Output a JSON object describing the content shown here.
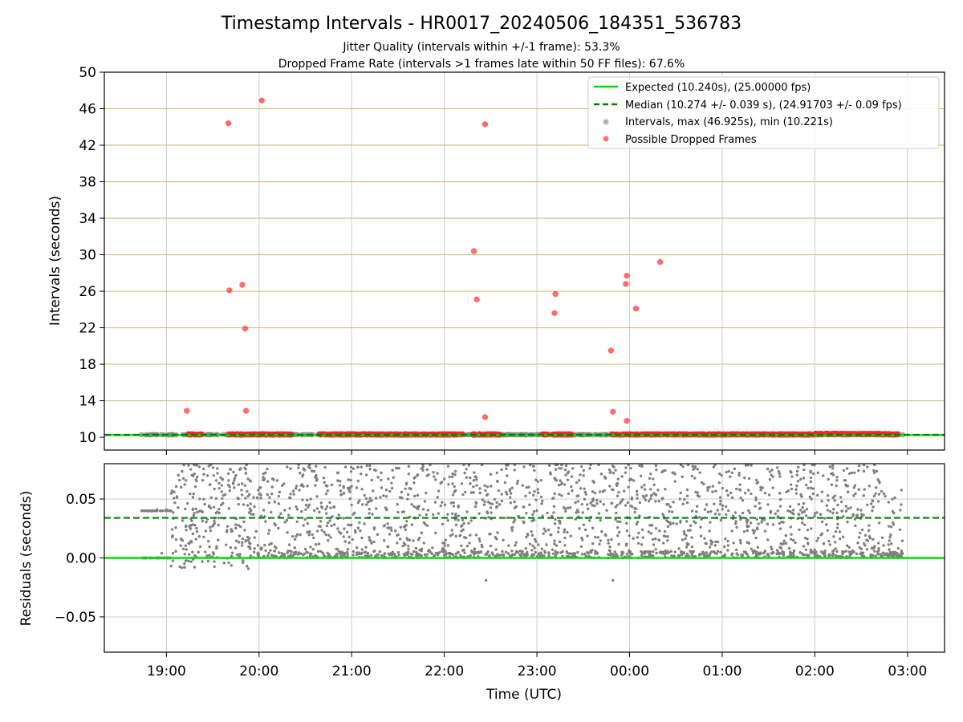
{
  "chart_data": {
    "type": "scatter",
    "title": "Timestamp Intervals - HR0017_20240506_184351_536783",
    "subtitles": [
      "Jitter Quality (intervals within +/-1 frame): 53.3%",
      "Dropped Frame Rate (intervals >1 frames late within 50 FF files): 67.6%"
    ],
    "xlabel": "Time (UTC)",
    "x_ticks": [
      "19:00",
      "20:00",
      "21:00",
      "22:00",
      "23:00",
      "00:00",
      "01:00",
      "02:00",
      "03:00"
    ],
    "xlim_hours": [
      18.33,
      27.4
    ],
    "x_unit": "hours of UTC time starting 2024-05-06",
    "grid": true,
    "legend_position": "top-right",
    "panels": [
      {
        "name": "intervals",
        "ylabel": "Intervals (seconds)",
        "ylim": [
          8.6,
          50
        ],
        "y_ticks": [
          "10",
          "14",
          "18",
          "22",
          "26",
          "30",
          "34",
          "38",
          "42",
          "46",
          "50"
        ],
        "expected_line": 10.24,
        "median_line": 10.274,
        "series": [
          {
            "name": "Expected (10.240s), (25.00000 fps)",
            "style": "solid-line",
            "color": "#00e000"
          },
          {
            "name": "Median (10.274 +/- 0.039 s), (24.91703 +/- 0.09 fps)",
            "style": "dashed-line",
            "color": "#008000"
          },
          {
            "name": "Intervals, max (46.925s), min (10.221s)",
            "style": "point",
            "color": "#808080",
            "x_range": [
              18.73,
              26.95
            ],
            "y_typical": [
              10.24,
              10.32
            ]
          },
          {
            "name": "Possible Dropped Frames",
            "style": "point",
            "color": "#ff3333",
            "points": [
              [
                19.22,
                12.9
              ],
              [
                19.67,
                44.4
              ],
              [
                19.68,
                26.1
              ],
              [
                19.82,
                26.7
              ],
              [
                19.85,
                21.9
              ],
              [
                19.86,
                12.9
              ],
              [
                20.03,
                46.9
              ],
              [
                22.32,
                30.4
              ],
              [
                22.35,
                25.1
              ],
              [
                22.44,
                44.3
              ],
              [
                22.44,
                12.2
              ],
              [
                23.19,
                23.6
              ],
              [
                23.2,
                25.7
              ],
              [
                23.8,
                19.5
              ],
              [
                23.82,
                12.8
              ],
              [
                23.96,
                26.8
              ],
              [
                23.97,
                27.7
              ],
              [
                23.97,
                11.8
              ],
              [
                24.07,
                24.1
              ],
              [
                24.33,
                29.2
              ]
            ],
            "baseline_y": [
              10.24,
              10.38
            ],
            "baseline_x_ranges": [
              [
                19.22,
                19.4
              ],
              [
                19.67,
                20.35
              ],
              [
                20.65,
                22.2
              ],
              [
                22.3,
                22.6
              ],
              [
                23.05,
                23.12
              ],
              [
                23.17,
                23.38
              ],
              [
                23.8,
                26.9
              ]
            ]
          }
        ]
      },
      {
        "name": "residuals",
        "ylabel": "Residuals (seconds)",
        "ylim": [
          -0.08,
          0.08
        ],
        "y_ticks": [
          "−0.05",
          "0.00",
          "0.05"
        ],
        "expected_line": 0.0,
        "median_line": 0.034,
        "points_color": "#808080",
        "points_x_range": [
          18.73,
          26.95
        ],
        "points_y_range": [
          -0.02,
          0.08
        ]
      }
    ]
  }
}
